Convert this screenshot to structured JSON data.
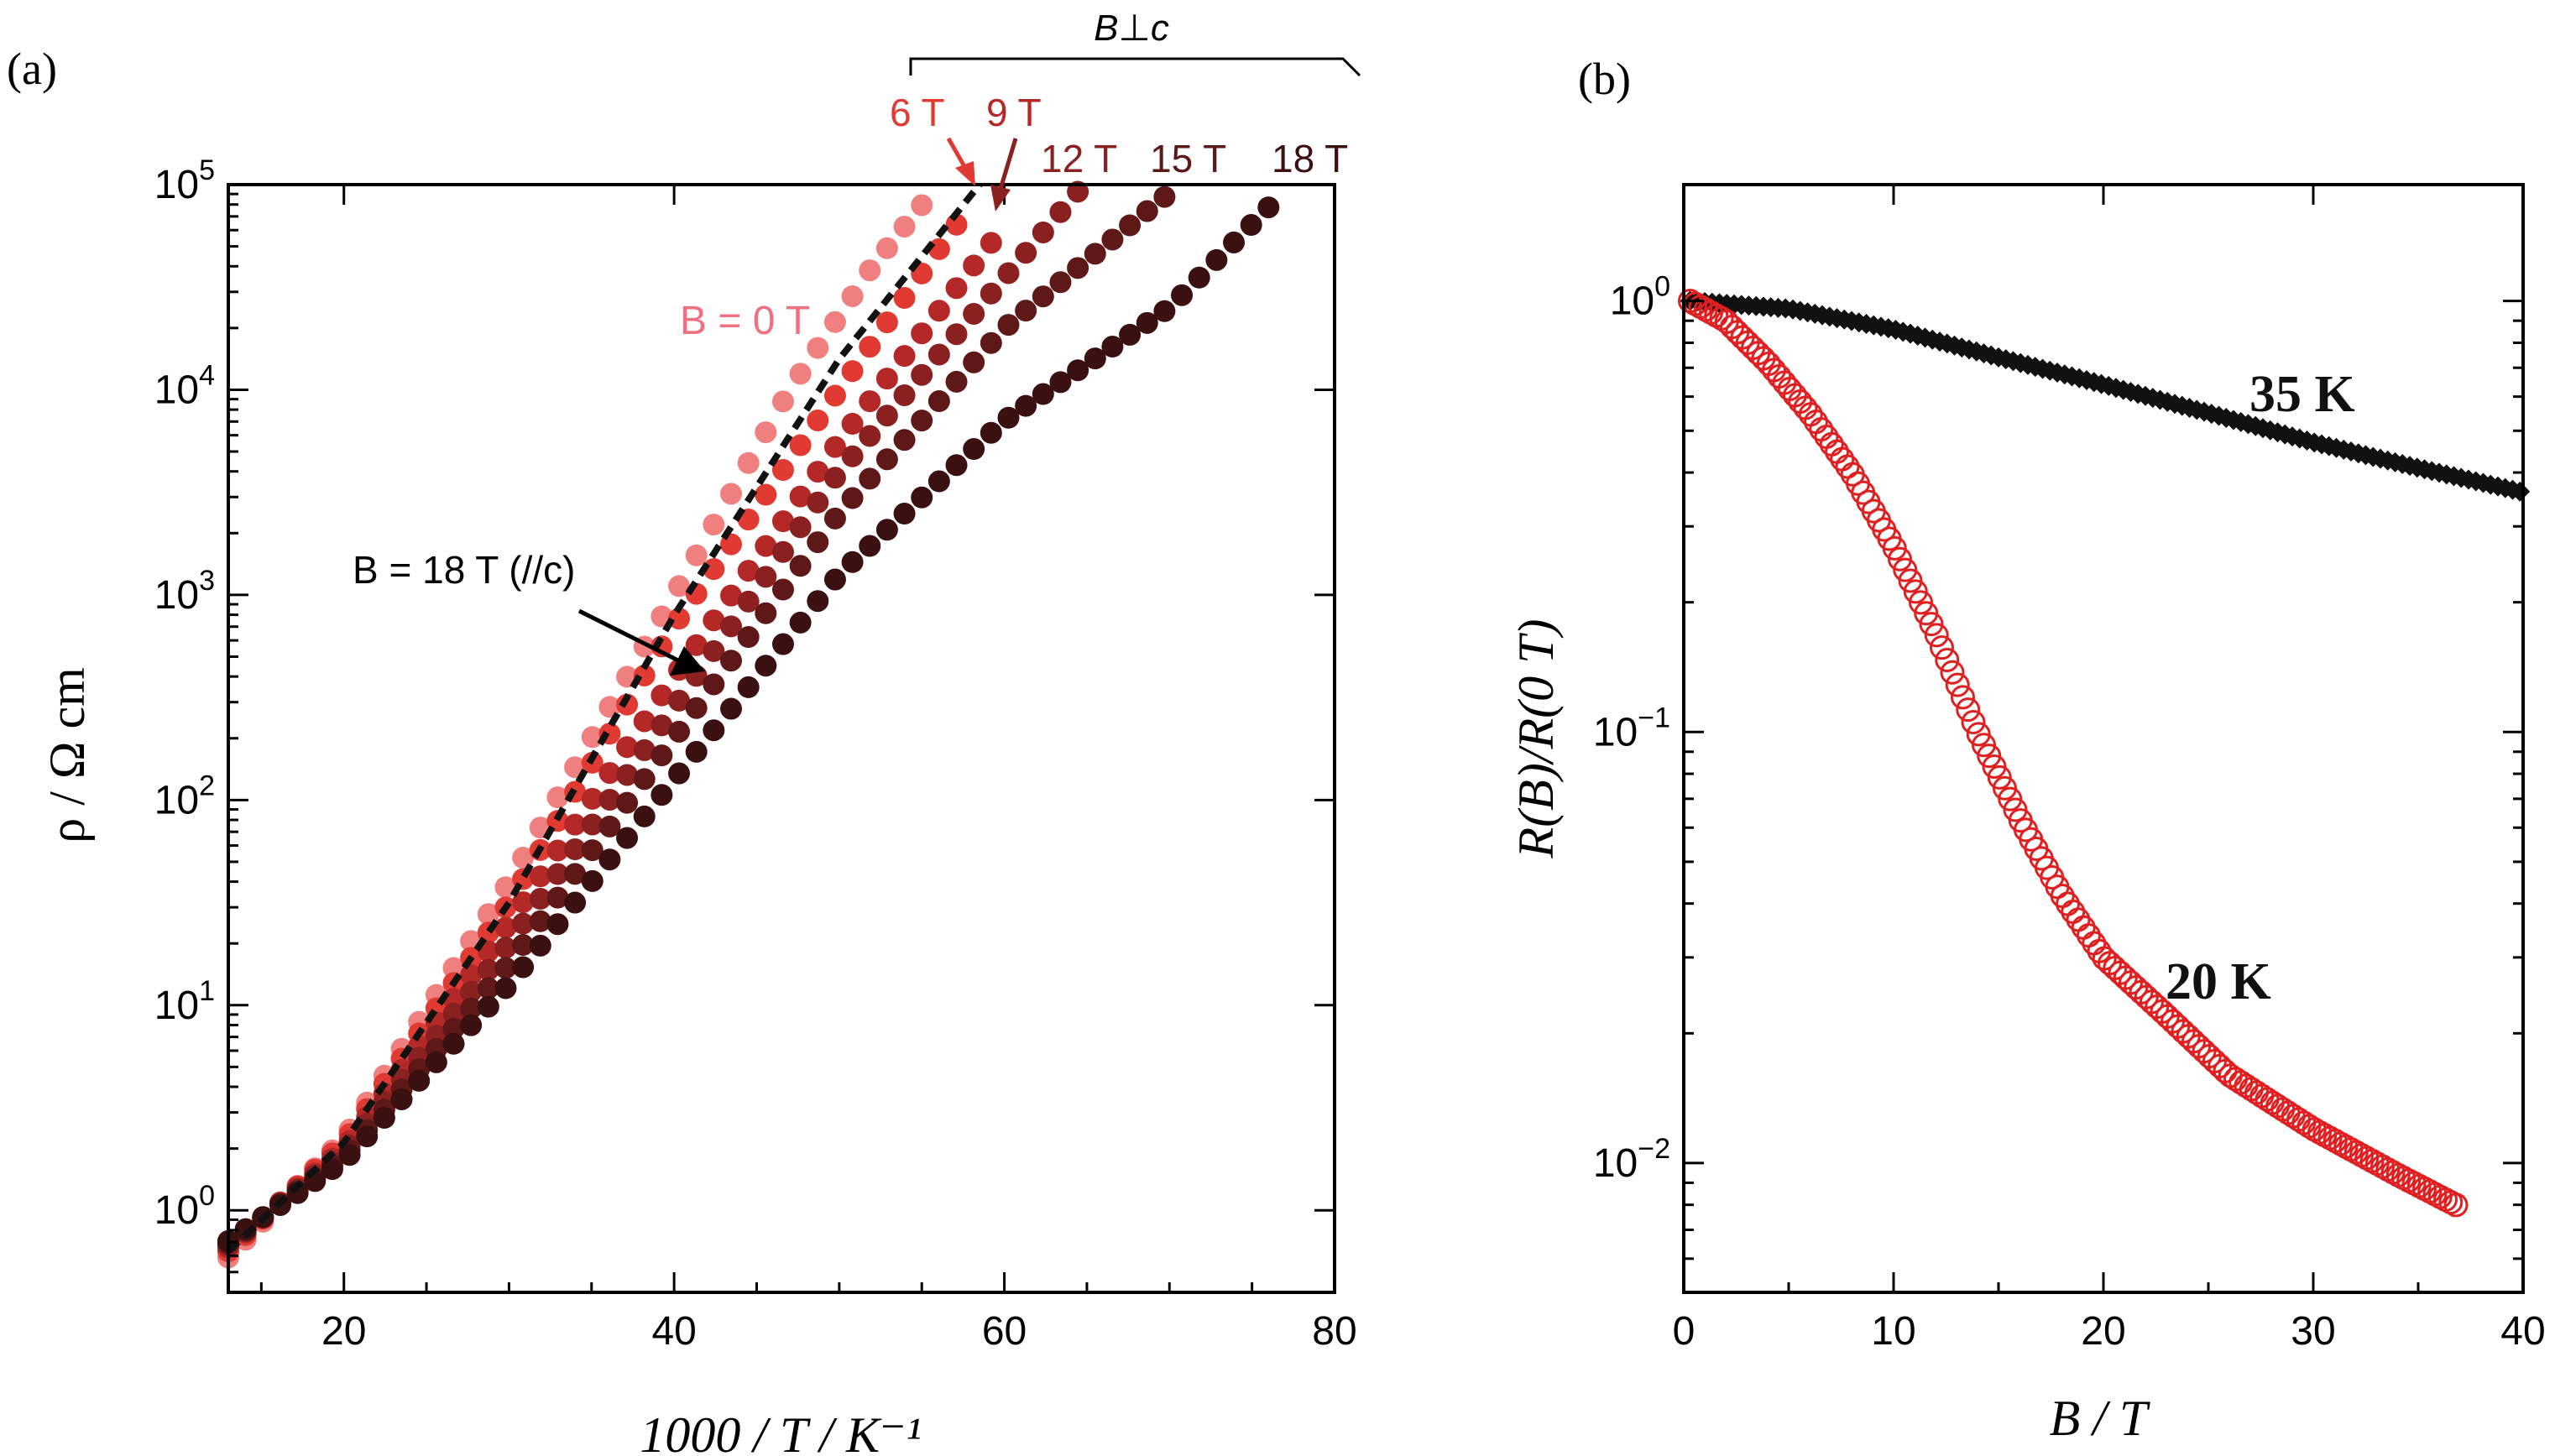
{
  "chart_data": [
    {
      "panel": "(a)",
      "type": "scatter",
      "xlabel": "1000 / T / K⁻¹",
      "ylabel": "ρ / Ω cm",
      "xlim": [
        13,
        80
      ],
      "ylim_log10": [
        -0.4,
        5
      ],
      "yscale": "log",
      "xticks": [
        20,
        40,
        60,
        80
      ],
      "yticks": [
        {
          "mantissa": "10",
          "exp": "0",
          "log": 0
        },
        {
          "mantissa": "10",
          "exp": "1",
          "log": 1
        },
        {
          "mantissa": "10",
          "exp": "2",
          "log": 2
        },
        {
          "mantissa": "10",
          "exp": "3",
          "log": 3
        },
        {
          "mantissa": "10",
          "exp": "4",
          "log": 4
        },
        {
          "mantissa": "10",
          "exp": "5",
          "log": 5
        }
      ],
      "bracket_label": "B⊥c",
      "annotation_zero": "B = 0 T",
      "annotation_dashed": "B = 18 T (//c)",
      "series": [
        {
          "name": "0 T",
          "label": "",
          "color": "#f08080",
          "x_end": 55.8,
          "points": [
            [
              13,
              -0.23
            ],
            [
              20,
              0.35
            ],
            [
              30,
              1.6
            ],
            [
              40,
              3.0
            ],
            [
              47,
              4.0
            ],
            [
              52,
              4.6
            ],
            [
              55.8,
              4.98
            ]
          ]
        },
        {
          "name": "6 T",
          "label": "6 T",
          "color": "#e03a32",
          "x_end": 57.5,
          "points": [
            [
              13,
              -0.2
            ],
            [
              20,
              0.33
            ],
            [
              30,
              1.5
            ],
            [
              40,
              2.85
            ],
            [
              50,
              4.0
            ],
            [
              57.5,
              4.85
            ]
          ]
        },
        {
          "name": "9 T",
          "label": "9 T",
          "color": "#b52828",
          "x_end": 60,
          "points": [
            [
              13,
              -0.18
            ],
            [
              20,
              0.3
            ],
            [
              30,
              1.4
            ],
            [
              40,
              2.6
            ],
            [
              50,
              3.75
            ],
            [
              60,
              4.8
            ]
          ]
        },
        {
          "name": "12 T",
          "label": "12 T",
          "color": "#8a2020",
          "x_end": 64.5,
          "points": [
            [
              13,
              -0.17
            ],
            [
              20,
              0.28
            ],
            [
              30,
              1.3
            ],
            [
              40,
              2.45
            ],
            [
              50,
              3.6
            ],
            [
              64.5,
              4.97
            ]
          ]
        },
        {
          "name": "15 T",
          "label": "15 T",
          "color": "#5f1818",
          "x_end": 70,
          "points": [
            [
              13,
              -0.16
            ],
            [
              20,
              0.26
            ],
            [
              30,
              1.2
            ],
            [
              40,
              2.3
            ],
            [
              50,
              3.4
            ],
            [
              60,
              4.3
            ],
            [
              70,
              4.96
            ]
          ]
        },
        {
          "name": "18 T",
          "label": "18 T",
          "color": "#3a1010",
          "x_end": 76.5,
          "points": [
            [
              13,
              -0.15
            ],
            [
              20,
              0.24
            ],
            [
              30,
              1.1
            ],
            [
              40,
              2.1
            ],
            [
              50,
              3.1
            ],
            [
              60,
              3.85
            ],
            [
              70,
              4.4
            ],
            [
              76.5,
              4.93
            ]
          ]
        }
      ],
      "dashed_line": {
        "name": "18 T (//c)",
        "color": "#111111",
        "points": [
          [
            13,
            -0.2
          ],
          [
            20,
            0.33
          ],
          [
            30,
            1.5
          ],
          [
            40,
            2.9
          ],
          [
            50,
            4.15
          ],
          [
            58.5,
            5.0
          ]
        ]
      }
    },
    {
      "panel": "(b)",
      "type": "scatter",
      "xlabel": "B / T",
      "ylabel": "R(B)/R(0 T)",
      "xlim": [
        0,
        40
      ],
      "ylim_log10": [
        -2.3,
        0.27
      ],
      "yscale": "log",
      "xticks": [
        0,
        10,
        20,
        30,
        40
      ],
      "yticks": [
        {
          "mantissa": "10",
          "exp": "0",
          "log": 0
        },
        {
          "mantissa": "10",
          "exp": "−1",
          "log": -1
        },
        {
          "mantissa": "10",
          "exp": "−2",
          "log": -2
        }
      ],
      "series": [
        {
          "name": "35 K",
          "label": "35 K",
          "color": "#111111",
          "marker": "solid",
          "points": [
            [
              0.3,
              1.0
            ],
            [
              5,
              0.96
            ],
            [
              10,
              0.86
            ],
            [
              15,
              0.74
            ],
            [
              20,
              0.64
            ],
            [
              25,
              0.55
            ],
            [
              30,
              0.47
            ],
            [
              35,
              0.41
            ],
            [
              40,
              0.36
            ]
          ]
        },
        {
          "name": "20 K",
          "label": "20 K",
          "color": "#e02020",
          "marker": "open",
          "points": [
            [
              0.3,
              1.0
            ],
            [
              2,
              0.9
            ],
            [
              4,
              0.72
            ],
            [
              6,
              0.55
            ],
            [
              8,
              0.4
            ],
            [
              10,
              0.27
            ],
            [
              12,
              0.17
            ],
            [
              14,
              0.1
            ],
            [
              16,
              0.063
            ],
            [
              18,
              0.042
            ],
            [
              20,
              0.03
            ],
            [
              23,
              0.022
            ],
            [
              26,
              0.016
            ],
            [
              30,
              0.012
            ],
            [
              34,
              0.0094
            ],
            [
              37,
              0.0079
            ]
          ]
        }
      ]
    }
  ]
}
